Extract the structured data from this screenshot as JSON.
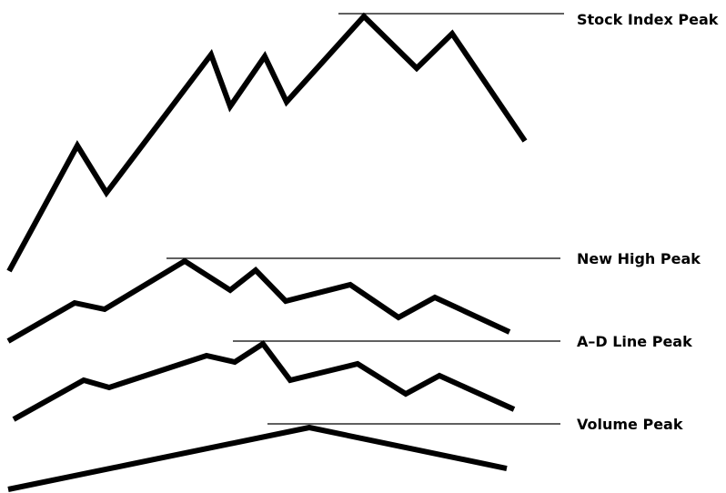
{
  "labels": {
    "stock_index_peak": "Stock Index Peak",
    "new_high_peak": "New High Peak",
    "ad_line_peak": "A–D Line Peak",
    "volume_peak": "Volume Peak"
  },
  "colors": {
    "line": "#000000",
    "background": "#ffffff",
    "text": "#000000"
  }
}
